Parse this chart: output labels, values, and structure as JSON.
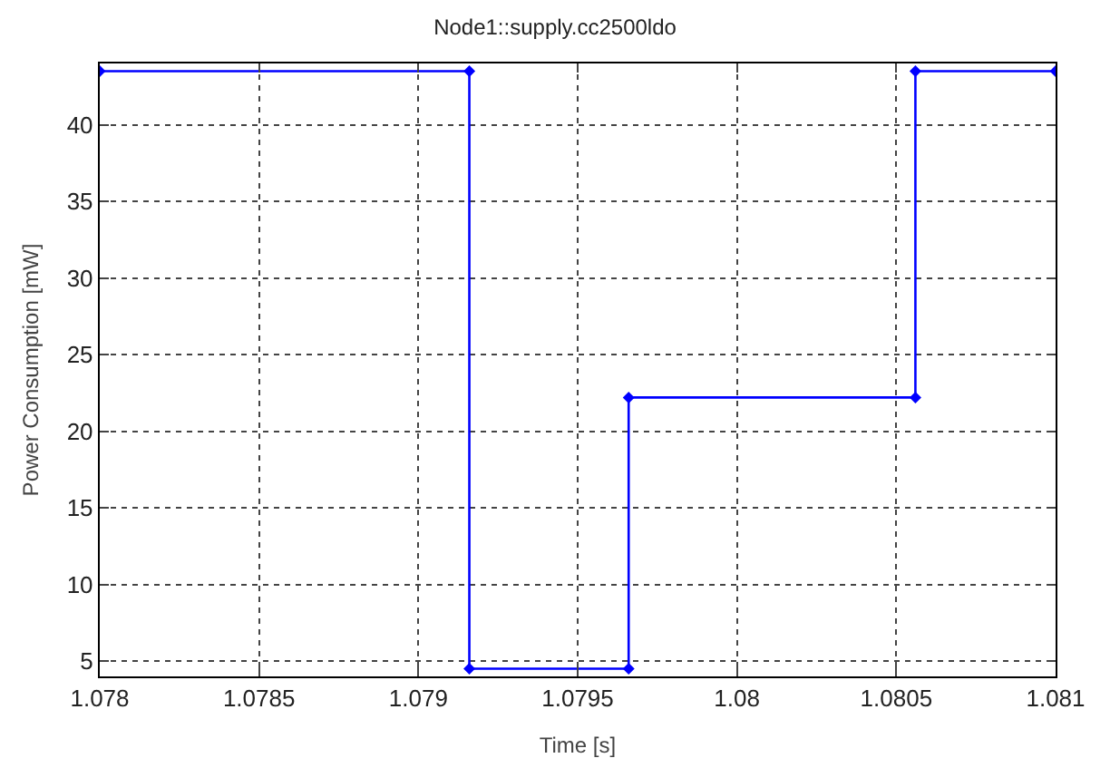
{
  "chart_data": {
    "type": "line",
    "title": "Node1::supply.cc2500ldo",
    "xlabel": "Time [s]",
    "ylabel": "Power Consumption [mW]",
    "x": [
      1.078,
      1.07916,
      1.07916,
      1.07966,
      1.07966,
      1.08056,
      1.08056,
      1.081
    ],
    "series": [
      {
        "color": "#0000ff",
        "values": [
          43.5,
          43.5,
          4.5,
          4.5,
          22.2,
          22.2,
          43.5,
          43.5
        ]
      }
    ],
    "xlim": [
      1.078,
      1.081
    ],
    "xticks": [
      1.078,
      1.0785,
      1.079,
      1.0795,
      1.08,
      1.0805,
      1.081
    ],
    "ylim": [
      4,
      44
    ],
    "yticks": [
      5,
      10,
      15,
      20,
      25,
      30,
      35,
      40
    ],
    "grid": true,
    "marker": "diamond",
    "line_style": "solid"
  }
}
